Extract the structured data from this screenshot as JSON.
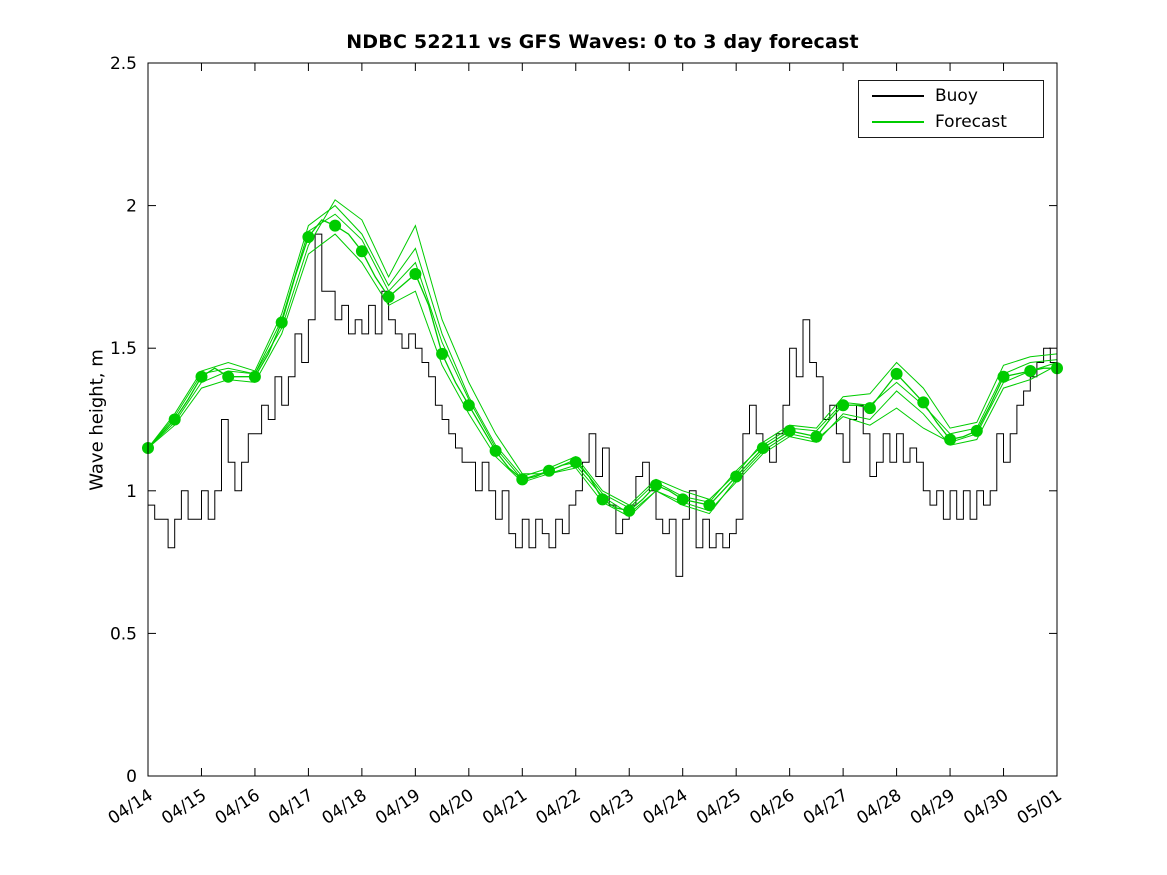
{
  "chart_data": {
    "type": "line",
    "title": "NDBC 52211 vs GFS Waves: 0 to 3 day forecast",
    "xlabel": "",
    "ylabel": "Wave height, m",
    "xlim": [
      0,
      17
    ],
    "ylim": [
      0,
      2.5
    ],
    "grid": false,
    "legend_position": "top-right-inside",
    "yticks": [
      0,
      0.5,
      1,
      1.5,
      2,
      2.5
    ],
    "ytick_labels": [
      "0",
      "0.5",
      "1",
      "1.5",
      "2",
      "2.5"
    ],
    "x_categories": [
      "04/14",
      "04/15",
      "04/16",
      "04/17",
      "04/18",
      "04/19",
      "04/20",
      "04/21",
      "04/22",
      "04/23",
      "04/24",
      "04/25",
      "04/26",
      "04/27",
      "04/28",
      "04/29",
      "04/30",
      "05/01"
    ],
    "legend": [
      {
        "name": "Buoy",
        "color": "#000000"
      },
      {
        "name": "Forecast",
        "color": "#00cc00"
      }
    ],
    "series": [
      {
        "id": "buoy-series",
        "name": "Buoy",
        "color": "#000000",
        "width": 1,
        "stairs": true,
        "x_start": 0,
        "x_step": 0.125,
        "values": [
          0.95,
          0.9,
          0.9,
          0.8,
          0.9,
          1.0,
          0.9,
          0.9,
          1.0,
          0.9,
          1.0,
          1.25,
          1.1,
          1.0,
          1.1,
          1.2,
          1.2,
          1.3,
          1.25,
          1.4,
          1.3,
          1.4,
          1.55,
          1.45,
          1.6,
          1.9,
          1.7,
          1.7,
          1.6,
          1.65,
          1.55,
          1.6,
          1.55,
          1.65,
          1.55,
          1.7,
          1.6,
          1.55,
          1.5,
          1.55,
          1.5,
          1.45,
          1.4,
          1.3,
          1.25,
          1.2,
          1.15,
          1.1,
          1.1,
          1.0,
          1.1,
          1.0,
          0.9,
          1.0,
          0.85,
          0.8,
          0.9,
          0.8,
          0.9,
          0.85,
          0.8,
          0.9,
          0.85,
          0.95,
          1.0,
          1.1,
          1.2,
          1.05,
          1.15,
          0.95,
          0.85,
          0.9,
          0.95,
          1.05,
          1.1,
          1.0,
          0.9,
          0.85,
          0.9,
          0.7,
          0.9,
          1.0,
          0.8,
          0.9,
          0.8,
          0.85,
          0.8,
          0.85,
          0.9,
          1.2,
          1.3,
          1.2,
          1.15,
          1.1,
          1.2,
          1.3,
          1.5,
          1.4,
          1.6,
          1.45,
          1.4,
          1.25,
          1.3,
          1.2,
          1.1,
          1.25,
          1.3,
          1.2,
          1.05,
          1.1,
          1.2,
          1.1,
          1.2,
          1.1,
          1.15,
          1.1,
          1.0,
          0.95,
          1.0,
          0.9,
          1.0,
          0.9,
          1.0,
          0.9,
          1.0,
          0.95,
          1.0,
          1.2,
          1.1,
          1.2,
          1.3,
          1.35,
          1.4,
          1.45,
          1.5,
          1.45,
          1.45
        ]
      },
      {
        "id": "forecast-member-1",
        "name": "Forecast",
        "color": "#00cc00",
        "width": 1,
        "stairs": false,
        "x_start": 0,
        "x_step": 0.5,
        "values": [
          1.15,
          1.27,
          1.42,
          1.45,
          1.42,
          1.62,
          1.93,
          2.0,
          1.9,
          1.72,
          1.85,
          1.55,
          1.33,
          1.16,
          1.05,
          1.08,
          1.12,
          1.0,
          0.95,
          1.04,
          1.0,
          0.97,
          1.06,
          1.17,
          1.23,
          1.22,
          1.33,
          1.34,
          1.45,
          1.36,
          1.22,
          1.24,
          1.44,
          1.47,
          1.48
        ]
      },
      {
        "id": "forecast-member-2",
        "name": "Forecast",
        "color": "#00cc00",
        "width": 1,
        "stairs": false,
        "x_start": 0,
        "x_step": 0.5,
        "values": [
          1.15,
          1.24,
          1.38,
          1.42,
          1.41,
          1.57,
          1.86,
          2.02,
          1.95,
          1.75,
          1.93,
          1.6,
          1.38,
          1.2,
          1.06,
          1.06,
          1.09,
          0.98,
          0.92,
          1.0,
          0.96,
          0.93,
          1.03,
          1.13,
          1.19,
          1.17,
          1.27,
          1.25,
          1.35,
          1.27,
          1.16,
          1.18,
          1.36,
          1.39,
          1.44
        ]
      },
      {
        "id": "forecast-member-3",
        "name": "Forecast",
        "color": "#00cc00",
        "width": 1,
        "stairs": false,
        "x_start": 0,
        "x_step": 0.5,
        "values": [
          1.15,
          1.23,
          1.36,
          1.39,
          1.38,
          1.55,
          1.83,
          1.9,
          1.8,
          1.65,
          1.7,
          1.44,
          1.27,
          1.12,
          1.03,
          1.06,
          1.08,
          0.96,
          0.91,
          1.0,
          0.95,
          0.92,
          1.04,
          1.14,
          1.2,
          1.18,
          1.26,
          1.23,
          1.29,
          1.22,
          1.17,
          1.2,
          1.38,
          1.42,
          1.45
        ]
      },
      {
        "id": "forecast-member-4",
        "name": "Forecast",
        "color": "#00cc00",
        "width": 1,
        "stairs": false,
        "x_start": 0,
        "x_step": 0.5,
        "values": [
          1.15,
          1.26,
          1.41,
          1.43,
          1.41,
          1.6,
          1.91,
          1.97,
          1.88,
          1.7,
          1.8,
          1.52,
          1.32,
          1.15,
          1.04,
          1.07,
          1.11,
          0.99,
          0.94,
          1.03,
          0.98,
          0.96,
          1.07,
          1.16,
          1.22,
          1.21,
          1.31,
          1.3,
          1.38,
          1.3,
          1.2,
          1.22,
          1.41,
          1.45,
          1.46
        ]
      },
      {
        "id": "forecast-main",
        "name": "Forecast",
        "color": "#00cc00",
        "width": 1.3,
        "stairs": false,
        "x_start": 0,
        "x_step": 0.25,
        "values": [
          1.15,
          1.2,
          1.25,
          1.32,
          1.4,
          1.43,
          1.4,
          1.4,
          1.4,
          1.48,
          1.59,
          1.75,
          1.89,
          1.95,
          1.93,
          1.9,
          1.84,
          1.75,
          1.68,
          1.72,
          1.76,
          1.65,
          1.48,
          1.38,
          1.3,
          1.22,
          1.14,
          1.08,
          1.04,
          1.05,
          1.07,
          1.09,
          1.1,
          1.05,
          0.97,
          0.94,
          0.93,
          0.97,
          1.02,
          1.0,
          0.97,
          0.96,
          0.95,
          1.0,
          1.05,
          1.1,
          1.15,
          1.18,
          1.21,
          1.2,
          1.19,
          1.25,
          1.3,
          1.3,
          1.29,
          1.35,
          1.41,
          1.36,
          1.31,
          1.24,
          1.18,
          1.19,
          1.21,
          1.3,
          1.4,
          1.41,
          1.42,
          1.43,
          1.43
        ]
      }
    ],
    "markers": {
      "id": "forecast-markers",
      "color": "#00cc00",
      "radius": 6,
      "x_start": 0,
      "x_step": 0.5,
      "values": [
        1.15,
        1.25,
        1.4,
        1.4,
        1.4,
        1.59,
        1.89,
        1.93,
        1.84,
        1.68,
        1.76,
        1.48,
        1.3,
        1.14,
        1.04,
        1.07,
        1.1,
        0.97,
        0.93,
        1.02,
        0.97,
        0.95,
        1.05,
        1.15,
        1.21,
        1.19,
        1.3,
        1.29,
        1.41,
        1.31,
        1.18,
        1.21,
        1.4,
        1.42,
        1.43
      ]
    }
  }
}
